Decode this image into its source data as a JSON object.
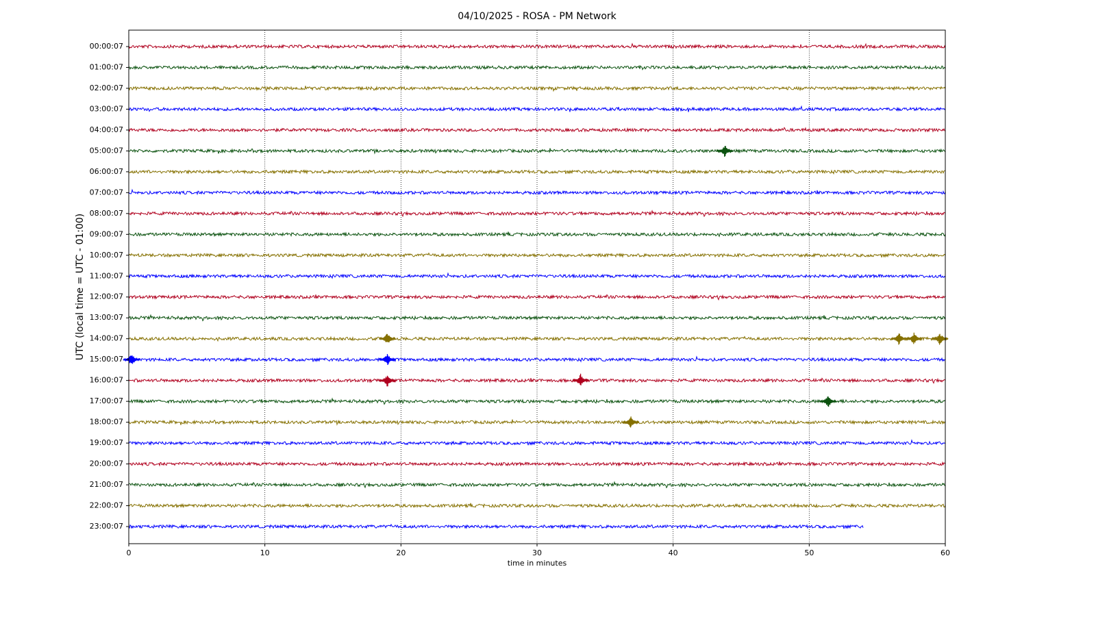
{
  "chart_data": {
    "type": "helicorder",
    "title": "04/10/2025 - ROSA - PM Network",
    "xlabel": "time in minutes",
    "ylabel": "UTC (local time = UTC - 01:00)",
    "xlim": [
      0,
      60
    ],
    "xticks": [
      0,
      10,
      20,
      30,
      40,
      50,
      60
    ],
    "grid": true,
    "categories": [
      "00:00:07",
      "01:00:07",
      "02:00:07",
      "03:00:07",
      "04:00:07",
      "05:00:07",
      "06:00:07",
      "07:00:07",
      "08:00:07",
      "09:00:07",
      "10:00:07",
      "11:00:07",
      "12:00:07",
      "13:00:07",
      "14:00:07",
      "15:00:07",
      "16:00:07",
      "17:00:07",
      "18:00:07",
      "19:00:07",
      "20:00:07",
      "21:00:07",
      "22:00:07",
      "23:00:07"
    ],
    "rows": [
      {
        "color": "#b0001e",
        "span": [
          0,
          60
        ],
        "events": []
      },
      {
        "color": "#0b520f",
        "span": [
          0,
          60
        ],
        "events": []
      },
      {
        "color": "#857000",
        "span": [
          0,
          60
        ],
        "events": []
      },
      {
        "color": "#0000ff",
        "span": [
          0,
          60
        ],
        "events": []
      },
      {
        "color": "#b0001e",
        "span": [
          0,
          60
        ],
        "events": []
      },
      {
        "color": "#0b520f",
        "span": [
          0,
          60
        ],
        "events": [
          43.8
        ]
      },
      {
        "color": "#857000",
        "span": [
          0,
          60
        ],
        "events": []
      },
      {
        "color": "#0000ff",
        "span": [
          0,
          60
        ],
        "events": []
      },
      {
        "color": "#b0001e",
        "span": [
          0,
          60
        ],
        "events": []
      },
      {
        "color": "#0b520f",
        "span": [
          0,
          60
        ],
        "events": []
      },
      {
        "color": "#857000",
        "span": [
          0,
          60
        ],
        "events": []
      },
      {
        "color": "#0000ff",
        "span": [
          0,
          60
        ],
        "events": []
      },
      {
        "color": "#b0001e",
        "span": [
          0,
          60
        ],
        "events": []
      },
      {
        "color": "#0b520f",
        "span": [
          0,
          60
        ],
        "events": []
      },
      {
        "color": "#857000",
        "span": [
          0,
          60
        ],
        "events": [
          19,
          56.6,
          57.7,
          59.6
        ]
      },
      {
        "color": "#0000ff",
        "span": [
          0,
          60
        ],
        "events": [
          0.2,
          19
        ]
      },
      {
        "color": "#b0001e",
        "span": [
          0,
          60
        ],
        "events": [
          19,
          33.2
        ]
      },
      {
        "color": "#0b520f",
        "span": [
          0,
          60
        ],
        "events": [
          51.4
        ]
      },
      {
        "color": "#857000",
        "span": [
          0,
          60
        ],
        "events": [
          36.9
        ]
      },
      {
        "color": "#0000ff",
        "span": [
          0,
          60
        ],
        "events": []
      },
      {
        "color": "#b0001e",
        "span": [
          0,
          60
        ],
        "events": []
      },
      {
        "color": "#0b520f",
        "span": [
          0,
          60
        ],
        "events": []
      },
      {
        "color": "#857000",
        "span": [
          0,
          60
        ],
        "events": []
      },
      {
        "color": "#0000ff",
        "span": [
          0,
          54
        ],
        "events": []
      }
    ]
  }
}
